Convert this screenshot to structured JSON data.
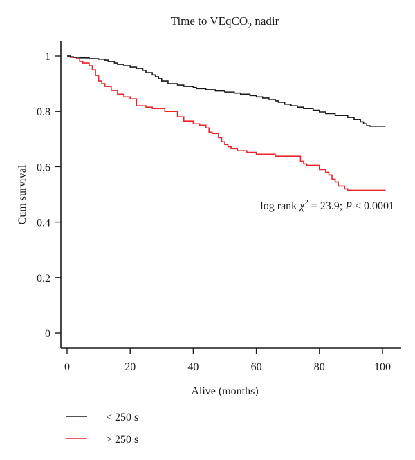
{
  "chart_data": {
    "type": "line",
    "subtype": "kaplan-meier-step",
    "title": "Time to VEqCO",
    "title_subscript": "2",
    "title_suffix": " nadir",
    "xlabel": "Alive (months)",
    "ylabel": "Cum survival",
    "xlim": [
      -2,
      105
    ],
    "ylim": [
      -0.05,
      1.05
    ],
    "xticks": [
      0,
      20,
      40,
      60,
      80,
      100
    ],
    "xtick_labels": [
      "0",
      "20",
      "40",
      "60",
      "80",
      "100"
    ],
    "yticks": [
      0,
      0.2,
      0.4,
      0.6,
      0.8,
      1
    ],
    "ytick_labels": [
      "0",
      "0.2",
      "0.4",
      "0.6",
      "0.8",
      "1"
    ],
    "grid": false,
    "legend_position": "bottom-left",
    "annotation": {
      "prefix": "log rank ",
      "chi": "χ",
      "sup": "2",
      "middle": " = 23.9; ",
      "p": "P",
      "suffix": " < 0.0001"
    },
    "series": [
      {
        "name": "< 250 s",
        "color": "#1a1a1a",
        "x": [
          0,
          1,
          2,
          4,
          7,
          10,
          12,
          13,
          15,
          16,
          18,
          20,
          22,
          24,
          25,
          27,
          28,
          29,
          30,
          32,
          35,
          37,
          40,
          41,
          44,
          47,
          50,
          53,
          55,
          58,
          60,
          62,
          64,
          66,
          67,
          69,
          71,
          73,
          75,
          78,
          80,
          82,
          85,
          89,
          91,
          93,
          94,
          95,
          96,
          101
        ],
        "y": [
          1.0,
          0.997,
          0.995,
          0.993,
          0.99,
          0.988,
          0.985,
          0.98,
          0.975,
          0.97,
          0.965,
          0.96,
          0.955,
          0.948,
          0.94,
          0.932,
          0.925,
          0.918,
          0.91,
          0.9,
          0.895,
          0.89,
          0.886,
          0.882,
          0.878,
          0.874,
          0.87,
          0.866,
          0.862,
          0.857,
          0.852,
          0.848,
          0.843,
          0.838,
          0.833,
          0.826,
          0.82,
          0.815,
          0.81,
          0.804,
          0.798,
          0.792,
          0.785,
          0.778,
          0.77,
          0.762,
          0.755,
          0.748,
          0.746,
          0.746
        ]
      },
      {
        "name": "> 250 s",
        "color": "#e8262b",
        "x": [
          0,
          1,
          3,
          4,
          5,
          7,
          8,
          9,
          10,
          11,
          12,
          14,
          16,
          18,
          20,
          22,
          25,
          27,
          31,
          33,
          35,
          37,
          40,
          42,
          44,
          45,
          46,
          48,
          49,
          50,
          51,
          52,
          54,
          57,
          60,
          66,
          74,
          75,
          76,
          80,
          82,
          83,
          84,
          85,
          86,
          88,
          89,
          101
        ],
        "y": [
          1.0,
          0.995,
          0.99,
          0.98,
          0.975,
          0.965,
          0.95,
          0.93,
          0.91,
          0.9,
          0.89,
          0.875,
          0.862,
          0.852,
          0.845,
          0.82,
          0.815,
          0.81,
          0.8,
          0.8,
          0.78,
          0.765,
          0.755,
          0.75,
          0.74,
          0.725,
          0.72,
          0.705,
          0.69,
          0.68,
          0.672,
          0.665,
          0.658,
          0.652,
          0.645,
          0.638,
          0.62,
          0.61,
          0.605,
          0.59,
          0.58,
          0.57,
          0.555,
          0.545,
          0.53,
          0.52,
          0.515,
          0.515
        ]
      }
    ]
  }
}
